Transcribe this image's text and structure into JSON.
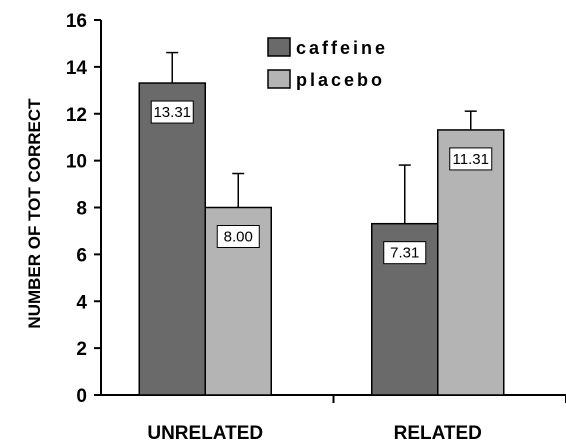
{
  "chart_data": {
    "type": "bar",
    "ylabel": "NUMBER OF TOT CORRECT",
    "xlabel": "",
    "ylim": [
      0,
      16
    ],
    "yticks": [
      0,
      2,
      4,
      6,
      8,
      10,
      12,
      14,
      16
    ],
    "categories": [
      "UNRELATED",
      "RELATED"
    ],
    "series": [
      {
        "name": "caffeine",
        "values": [
          13.31,
          7.31
        ],
        "labels": [
          "13.31",
          "7.31"
        ],
        "error": [
          1.3,
          2.5
        ],
        "color": "#6a6a6a"
      },
      {
        "name": "placebo",
        "values": [
          8.0,
          11.31
        ],
        "labels": [
          "8.00",
          "11.31"
        ],
        "error": [
          1.45,
          0.8
        ],
        "color": "#b4b4b4"
      }
    ],
    "legend_position": "top-right",
    "grid": false
  }
}
